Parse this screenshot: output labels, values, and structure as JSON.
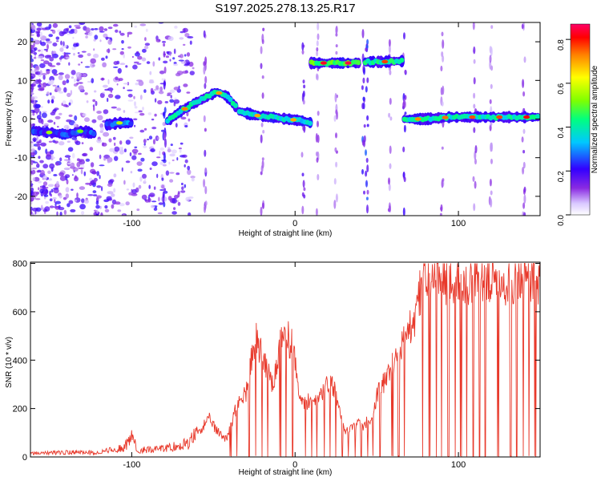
{
  "chart_data": [
    {
      "type": "heatmap",
      "title": "S197.2025.278.13.25.R17",
      "xlabel": "Height of straight line (km)",
      "ylabel": "Frequency (Hz)",
      "xlim": [
        -162,
        150
      ],
      "ylim": [
        -25,
        25
      ],
      "x_ticks": [
        -100,
        0,
        100
      ],
      "x_tick_labels": [
        "-100",
        "0",
        "100"
      ],
      "y_ticks": [
        -20,
        -10,
        0,
        10,
        20
      ],
      "y_tick_labels": [
        "-20",
        "-10",
        "0",
        "10",
        "20"
      ],
      "colorbar": {
        "label": "Normalized spectral amplitude",
        "range": [
          0,
          0.87
        ],
        "ticks": [
          0.0,
          0.2,
          0.4,
          0.6,
          0.8
        ],
        "tick_labels": [
          "0.0",
          "0.2",
          "0.4",
          "0.6",
          "0.8"
        ],
        "colors": [
          "#ffffff",
          "#d9c8ff",
          "#8a2be2",
          "#3300ff",
          "#00c8ff",
          "#00ff80",
          "#80ff00",
          "#ffff00",
          "#ff8000",
          "#ff0000",
          "#ff0066"
        ]
      },
      "tracks": [
        {
          "x": [
            -160,
            -150,
            -140,
            -130,
            -122
          ],
          "freq": [
            -3,
            -3.5,
            -4,
            -3,
            -4
          ],
          "amp": 0.3
        },
        {
          "x": [
            -115,
            -108,
            -100
          ],
          "freq": [
            -1.5,
            -1,
            -1
          ],
          "amp": 0.35
        },
        {
          "x": [
            -78,
            -70,
            -62,
            -55,
            -48,
            -42,
            -36
          ],
          "freq": [
            -0.5,
            2,
            4,
            5.5,
            7,
            6,
            3
          ],
          "amp": 0.55
        },
        {
          "x": [
            -34,
            -25,
            -15,
            -5,
            5,
            10
          ],
          "freq": [
            2,
            1,
            0.5,
            0,
            -0.5,
            -1
          ],
          "amp": 0.5
        },
        {
          "x": [
            10,
            20,
            30,
            40
          ],
          "freq": [
            14.5,
            14.5,
            14.5,
            14.5
          ],
          "amp": 0.7
        },
        {
          "x": [
            43,
            53,
            62,
            67
          ],
          "freq": [
            14.8,
            14.8,
            15,
            15
          ],
          "amp": 0.6
        },
        {
          "x": [
            67,
            80,
            95,
            110,
            125,
            140,
            150
          ],
          "freq": [
            0,
            0,
            0.5,
            0.5,
            0.5,
            0.5,
            0.5
          ],
          "amp": 0.55
        }
      ]
    },
    {
      "type": "line",
      "xlabel": "Height of straight line (km)",
      "ylabel": "SNR (10 * v/v)",
      "xlim": [
        -162,
        150
      ],
      "ylim": [
        0,
        805
      ],
      "x_ticks": [
        -100,
        0,
        100
      ],
      "x_tick_labels": [
        "-100",
        "0",
        "100"
      ],
      "y_ticks": [
        0,
        200,
        400,
        600,
        800
      ],
      "y_tick_labels": [
        "0",
        "200",
        "400",
        "600",
        "800"
      ],
      "color": "#e8392b",
      "envelope": {
        "x": [
          -162,
          -140,
          -120,
          -105,
          -100,
          -96,
          -80,
          -65,
          -58,
          -52,
          -48,
          -42,
          -36,
          -30,
          -24,
          -20,
          -14,
          -10,
          -6,
          -2,
          2,
          6,
          10,
          14,
          18,
          22,
          26,
          30,
          34,
          38,
          42,
          46,
          50,
          54,
          58,
          62,
          66,
          70,
          74,
          76,
          78,
          82,
          90,
          100,
          110,
          120,
          130,
          140,
          150
        ],
        "y": [
          15,
          20,
          20,
          40,
          85,
          30,
          35,
          60,
          120,
          160,
          110,
          80,
          210,
          280,
          520,
          420,
          300,
          450,
          520,
          480,
          300,
          230,
          230,
          260,
          300,
          320,
          260,
          110,
          120,
          140,
          140,
          150,
          260,
          320,
          380,
          430,
          490,
          540,
          580,
          680,
          740,
          760,
          770,
          760,
          760,
          765,
          755,
          760,
          760
        ]
      }
    }
  ]
}
